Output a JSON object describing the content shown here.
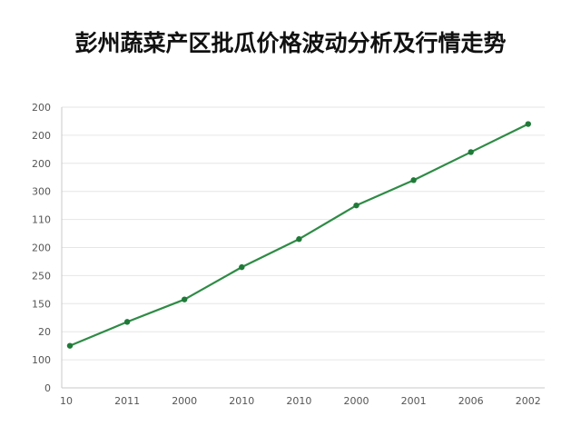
{
  "chart_data": {
    "type": "line",
    "title": "彭州蔬菜产区批瓜价格波动分析及行情走势",
    "xlabel": "",
    "ylabel": "",
    "x_tick_labels": [
      "10",
      "2011",
      "2000",
      "2010",
      "2010",
      "2000",
      "2001",
      "2006",
      "2002"
    ],
    "y_tick_labels": [
      "0",
      "100",
      "20",
      "150",
      "250",
      "200",
      "110",
      "300",
      "200",
      "200",
      "200"
    ],
    "y_tick_positions": [
      0,
      1,
      2,
      3,
      4,
      5,
      6,
      7,
      8,
      9,
      10
    ],
    "ylim": [
      0,
      10
    ],
    "grid": true,
    "legend": "none",
    "series": [
      {
        "values": [
          1.5,
          2.35,
          3.15,
          4.3,
          5.3,
          6.5,
          7.4,
          8.4,
          9.4
        ]
      }
    ],
    "colors": {
      "line": "#2e8b45",
      "marker": "#1f7a38",
      "grid": "#e6e6e6",
      "axis": "#c8c8c8"
    }
  }
}
